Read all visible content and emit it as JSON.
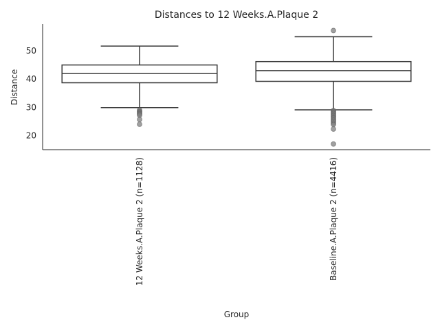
{
  "chart_data": {
    "type": "box",
    "title": "Distances to 12 Weeks.A.Plaque 2",
    "xlabel": "Group",
    "ylabel": "Distance",
    "ylim": [
      15,
      59.5
    ],
    "yticks": [
      20,
      30,
      40,
      50
    ],
    "grid": false,
    "colors": {
      "line": "#3a3a3a",
      "flier": "#808080",
      "axis": "#262626",
      "background": "#ffffff"
    },
    "categories": [
      "12 Weeks.A.Plaque 2 (n=1128)",
      "Baseline.A.Plaque 2 (n=4416)"
    ],
    "boxes": [
      {
        "label": "12 Weeks.A.Plaque 2 (n=1128)",
        "whisker_low": 29.9,
        "q1": 38.7,
        "median": 42.0,
        "q3": 45.0,
        "whisker_high": 51.7,
        "fliers": [
          29.0,
          28.6,
          28.3,
          27.9,
          27.6,
          27.2,
          25.7,
          24.0
        ]
      },
      {
        "label": "Baseline.A.Plaque 2 (n=4416)",
        "whisker_low": 29.1,
        "q1": 39.2,
        "median": 43.0,
        "q3": 46.2,
        "whisker_high": 55.0,
        "fliers": [
          57.2,
          28.9,
          28.5,
          28.1,
          27.8,
          27.4,
          27.0,
          26.6,
          26.2,
          25.8,
          25.4,
          24.9,
          24.4,
          23.9,
          22.3,
          17.0
        ]
      }
    ]
  }
}
